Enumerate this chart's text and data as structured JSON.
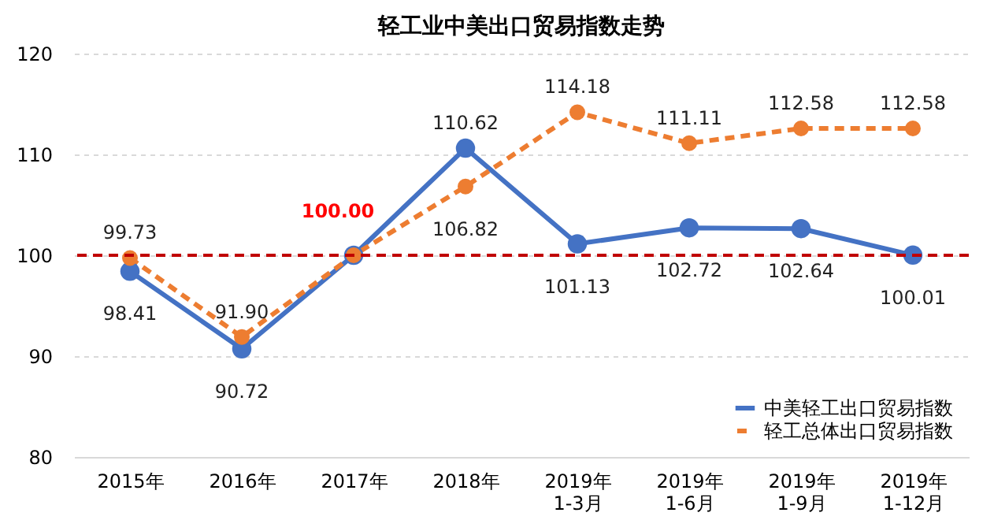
{
  "chart_data": {
    "type": "line",
    "title": "轻工业中美出口贸易指数走势",
    "categories": [
      "2015年",
      "2016年",
      "2017年",
      "2018年",
      "2019年\n1-3月",
      "2019年\n1-6月",
      "2019年\n1-9月",
      "2019年\n1-12月"
    ],
    "series": [
      {
        "name": "中美轻工出口贸易指数",
        "color": "#4472c4",
        "line_style": "solid",
        "values": [
          98.41,
          90.72,
          100.0,
          110.62,
          101.13,
          102.72,
          102.64,
          100.01
        ],
        "value_labels": [
          "98.41",
          "90.72",
          null,
          "110.62",
          "101.13",
          "102.72",
          "102.64",
          "100.01"
        ]
      },
      {
        "name": "轻工总体出口贸易指数",
        "color": "#ed7d31",
        "line_style": "dashed",
        "values": [
          99.73,
          91.9,
          100.0,
          106.82,
          114.18,
          111.11,
          112.58,
          112.58
        ],
        "value_labels": [
          "99.73",
          "91.90",
          null,
          "106.82",
          "114.18",
          "111.11",
          "112.58",
          "112.58"
        ]
      }
    ],
    "ylim": [
      80,
      120
    ],
    "yticks": [
      80,
      90,
      100,
      110,
      120
    ],
    "grid": "y",
    "marker": "circle",
    "legend": "bottom right",
    "ref_lines": [
      {
        "axis": "y",
        "value": 100,
        "color": "#c00000",
        "line_style": "dashed"
      }
    ],
    "annotations": [
      {
        "text": "100.00",
        "x": "2017年",
        "y": 100
      }
    ]
  }
}
